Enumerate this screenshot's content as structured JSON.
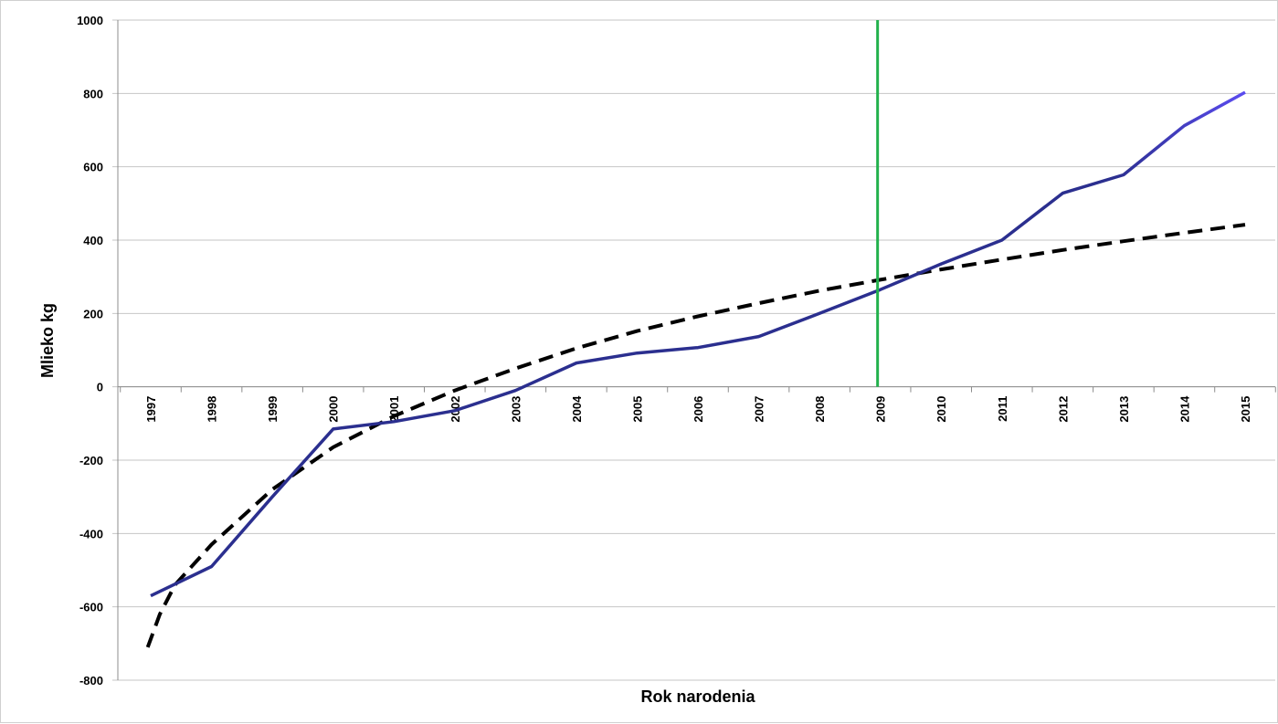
{
  "chart_data": {
    "type": "line",
    "title": "",
    "xlabel": "Rok narodenia",
    "ylabel": "Mlieko kg",
    "ylim": [
      -800,
      1000
    ],
    "yticks": [
      -800,
      -600,
      -400,
      -200,
      0,
      200,
      400,
      600,
      800,
      1000
    ],
    "grid": true,
    "categories": [
      "1997",
      "1998",
      "1999",
      "2000",
      "2001",
      "2002",
      "2003",
      "2004",
      "2005",
      "2006",
      "2007",
      "2008",
      "2009",
      "2010",
      "2011",
      "2012",
      "2013",
      "2014",
      "2015"
    ],
    "series": [
      {
        "style": "solid",
        "color": "#2b2f8f",
        "color_end": "#5b4cf0",
        "values": [
          -570,
          -490,
          -300,
          -115,
          -95,
          -65,
          -10,
          65,
          92,
          107,
          137,
          200,
          265,
          335,
          400,
          528,
          578,
          712,
          803
        ]
      },
      {
        "style": "dashed",
        "color": "#000000",
        "x_start": 1996.95,
        "values_trend": [
          [
            1996.95,
            -710
          ],
          [
            1997.15,
            -620
          ],
          [
            1997.4,
            -540
          ],
          [
            1998,
            -430
          ],
          [
            1999,
            -280
          ],
          [
            2000,
            -165
          ],
          [
            2001,
            -80
          ],
          [
            2002,
            -10
          ],
          [
            2003,
            50
          ],
          [
            2004,
            105
          ],
          [
            2005,
            152
          ],
          [
            2006,
            192
          ],
          [
            2007,
            228
          ],
          [
            2008,
            262
          ],
          [
            2009,
            292
          ],
          [
            2010,
            320
          ],
          [
            2011,
            347
          ],
          [
            2012,
            373
          ],
          [
            2013,
            397
          ],
          [
            2014,
            420
          ],
          [
            2015,
            442
          ]
        ]
      }
    ],
    "marker_line": {
      "x": "2009",
      "color": "#22b14c"
    }
  }
}
